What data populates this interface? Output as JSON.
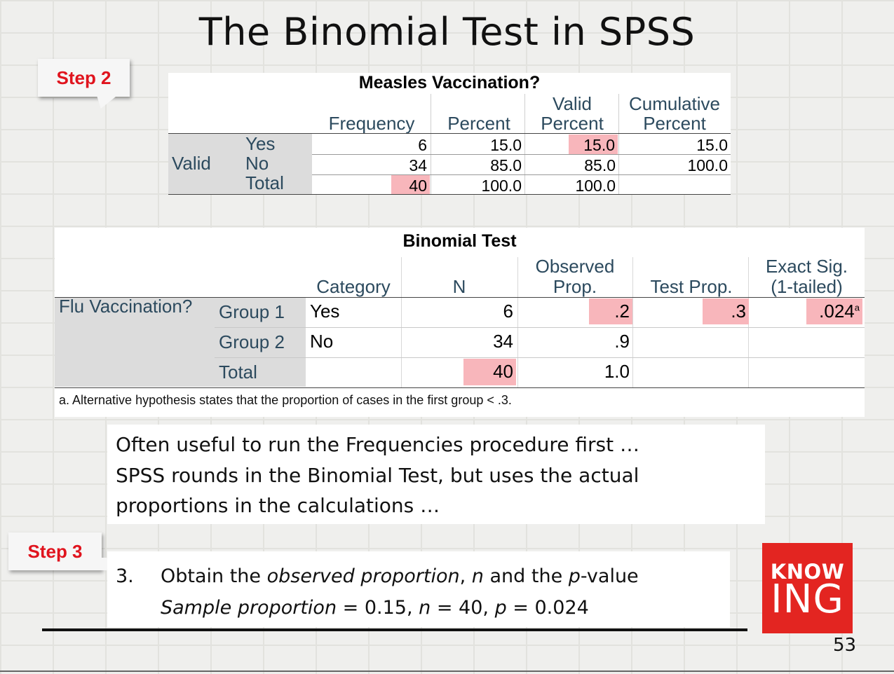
{
  "title": "The Binomial Test in SPSS",
  "step2_label": "Step 2",
  "step3_label": "Step 3",
  "colors": {
    "highlight": "#f8b6bb",
    "accent": "#e0141e",
    "logo_bg": "#e32521"
  },
  "frequencies": {
    "title": "Measles Vaccination?",
    "col_frequency": "Frequency",
    "col_percent": "Percent",
    "col_valid_1": "Valid",
    "col_valid_2": "Percent",
    "col_cum_1": "Cumulative",
    "col_cum_2": "Percent",
    "group_label": "Valid",
    "rows": [
      {
        "label": "Yes",
        "frequency": "6",
        "percent": "15.0",
        "valid": "15.0",
        "cumulative": "15.0"
      },
      {
        "label": "No",
        "frequency": "34",
        "percent": "85.0",
        "valid": "85.0",
        "cumulative": "100.0"
      },
      {
        "label": "Total",
        "frequency": "40",
        "percent": "100.0",
        "valid": "100.0",
        "cumulative": ""
      }
    ]
  },
  "binomial": {
    "title": "Binomial Test",
    "col_category": "Category",
    "col_n": "N",
    "col_obs_1": "Observed",
    "col_obs_2": "Prop.",
    "col_test": "Test Prop.",
    "col_sig_1": "Exact Sig.",
    "col_sig_2": "(1-tailed)",
    "variable": "Flu Vaccination?",
    "rows": [
      {
        "label": "Group 1",
        "category": "Yes",
        "n": "6",
        "observed": ".2",
        "test": ".3",
        "sig": ".024",
        "sig_sup": "a"
      },
      {
        "label": "Group 2",
        "category": "No",
        "n": "34",
        "observed": ".9",
        "test": "",
        "sig": "",
        "sig_sup": ""
      },
      {
        "label": "Total",
        "category": "",
        "n": "40",
        "observed": "1.0",
        "test": "",
        "sig": "",
        "sig_sup": ""
      }
    ],
    "footnote": "a. Alternative hypothesis states that the proportion of cases in the first group < .3."
  },
  "note1": {
    "line1": "Often useful to run the Frequencies procedure first …",
    "line2": "SPSS rounds in the Binomial Test, but uses the actual",
    "line3": "proportions in the calculations …"
  },
  "note2": {
    "number": "3.",
    "l1_a": "Obtain the ",
    "l1_b": "observed proportion",
    "l1_c": ", ",
    "l1_d": "n",
    "l1_e": " and the ",
    "l1_f": "p",
    "l1_g": "-value",
    "l2_a": "Sample proportion",
    "l2_b": " = 0.15, ",
    "l2_c": "n",
    "l2_d": " = 40, ",
    "l2_e": "p",
    "l2_f": " = 0.024"
  },
  "logo": {
    "line1": "KNOW",
    "line2": "ING"
  },
  "page_number": "53"
}
